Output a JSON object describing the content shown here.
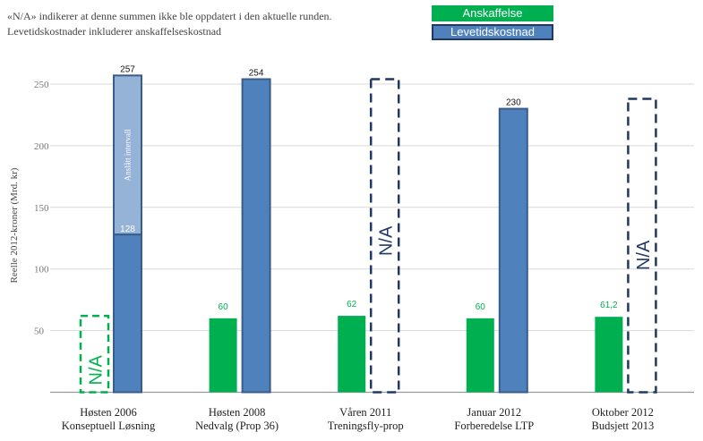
{
  "notes": {
    "line1": "«N/A» indikerer at denne summen ikke ble oppdatert i den aktuelle runden.",
    "line2": "Levetidskostnader inkluderer anskaffelseskostnad"
  },
  "colors": {
    "green": "#00b050",
    "blue": "#4f81bd",
    "blue_border": "#385d8a",
    "dark_navy": "#1f3864",
    "interval_fill": "#95b3d7",
    "na_green": "#00b050",
    "na_navy": "#1f3864"
  },
  "chart_data": {
    "type": "bar",
    "title": "",
    "ylabel": "Reelle 2012-kroner (Mrd. kr)",
    "ylim": [
      0,
      260
    ],
    "yticks": [
      50,
      100,
      150,
      200,
      250
    ],
    "categories": [
      [
        "Høsten 2006",
        "Konseptuell Løsning"
      ],
      [
        "Høsten 2008",
        "Nedvalg (Prop 36)"
      ],
      [
        "Våren 2011",
        "Treningsfly-prop"
      ],
      [
        "Januar 2012",
        "Forberedelse LTP"
      ],
      [
        "Oktober 2012",
        "Budsjett 2013"
      ]
    ],
    "series": [
      {
        "name": "Anskaffelse",
        "values": [
          null,
          60,
          62,
          60,
          61.2
        ],
        "labels": [
          "",
          "60",
          "62",
          "60",
          "61,2"
        ],
        "na_label": "N/A",
        "na_indices": [
          0
        ]
      },
      {
        "name": "Levetidskostnad",
        "values": [
          257,
          254,
          null,
          230,
          null
        ],
        "labels": [
          "257",
          "254",
          "",
          "230",
          ""
        ],
        "na_label": "N/A",
        "na_indices": [
          2,
          4
        ]
      }
    ],
    "interval": {
      "category_index": 0,
      "low": 128,
      "high": 257,
      "low_label": "128",
      "label": "Anslått intervall"
    },
    "na_reference_values": {
      "anskaffelse": 62,
      "levetid": 254
    }
  }
}
